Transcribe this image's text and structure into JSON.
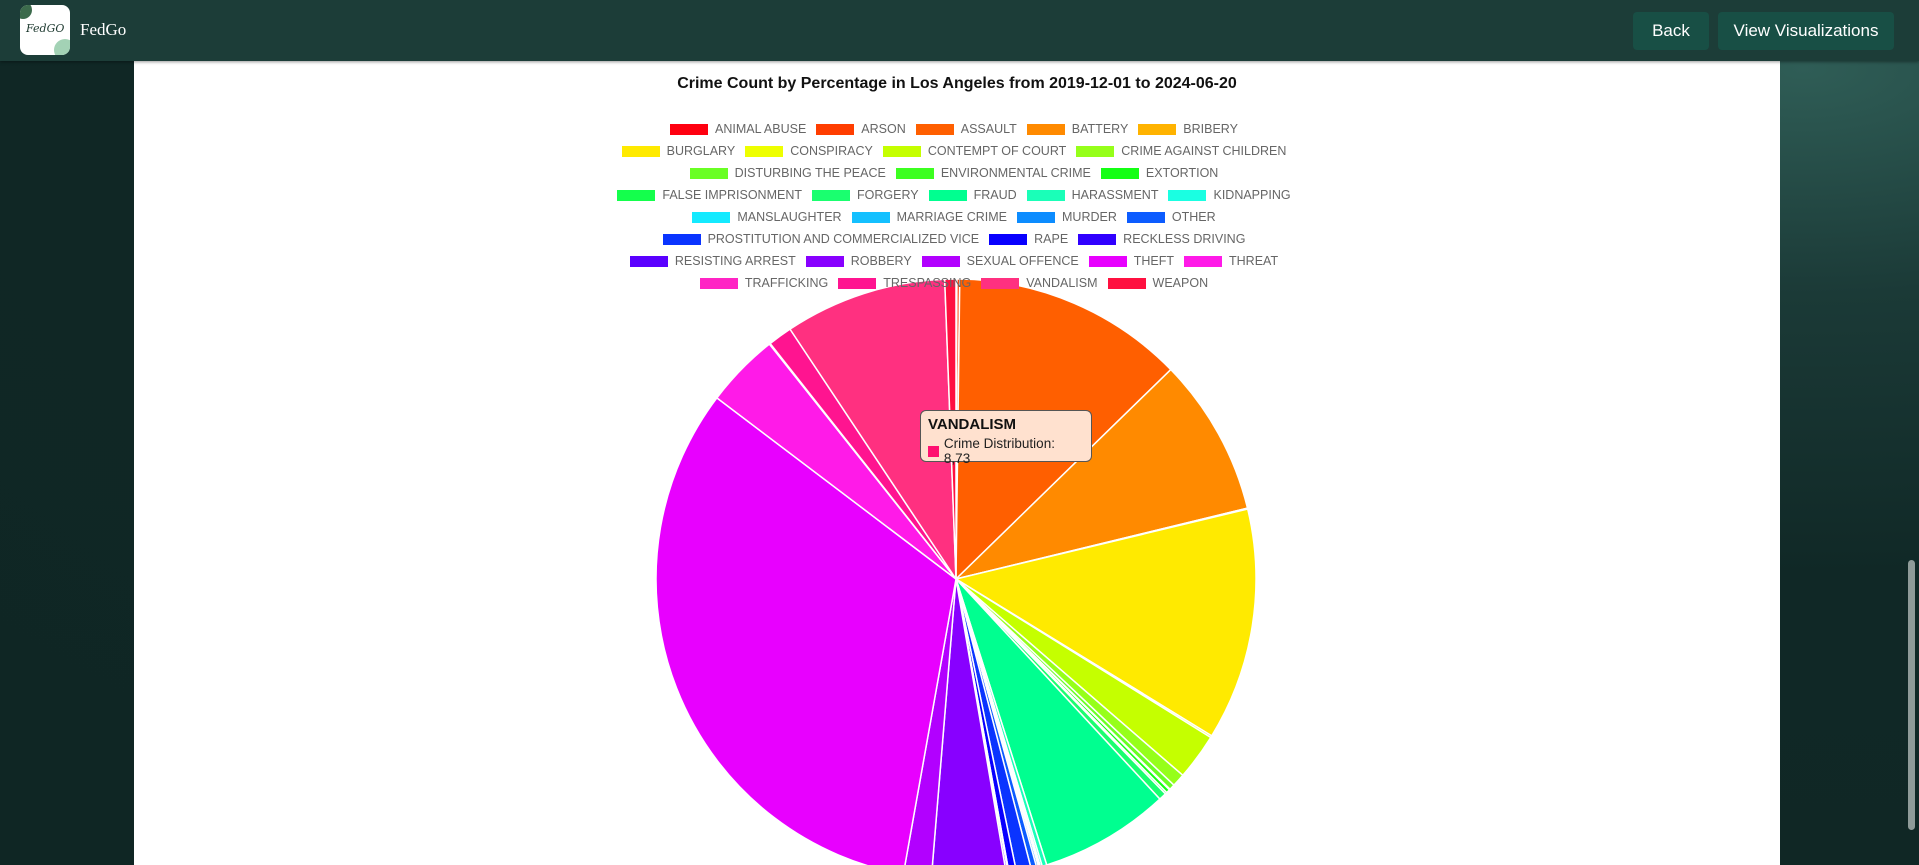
{
  "app": {
    "name": "FedGo",
    "logo_text": "FedGO"
  },
  "nav": {
    "back_label": "Back",
    "view_label": "View Visualizations"
  },
  "tooltip": {
    "title": "VANDALISM",
    "row_label": "Crime Distribution: 8,73",
    "color": "#ff1070"
  },
  "chart_data": {
    "type": "pie",
    "title": "Crime Count by Percentage in Los Angeles from 2019-12-01 to 2024-06-20",
    "legend_position": "top",
    "slices": [
      {
        "label": "ANIMAL ABUSE",
        "value": 0.05,
        "color": "#ff0010"
      },
      {
        "label": "ARSON",
        "value": 0.15,
        "color": "#ff3d00"
      },
      {
        "label": "ASSAULT",
        "value": 12.5,
        "color": "#ff5f00"
      },
      {
        "label": "BATTERY",
        "value": 8.5,
        "color": "#ff8a00"
      },
      {
        "label": "BRIBERY",
        "value": 0.05,
        "color": "#ffb300"
      },
      {
        "label": "BURGLARY",
        "value": 12.5,
        "color": "#ffea00"
      },
      {
        "label": "CONSPIRACY",
        "value": 0.1,
        "color": "#eeff00"
      },
      {
        "label": "CONTEMPT OF COURT",
        "value": 2.5,
        "color": "#c5ff00"
      },
      {
        "label": "CRIME AGAINST CHILDREN",
        "value": 0.7,
        "color": "#96ff1a"
      },
      {
        "label": "DISTURBING THE PEACE",
        "value": 0.3,
        "color": "#6aff24"
      },
      {
        "label": "ENVIRONMENTAL CRIME",
        "value": 0.05,
        "color": "#3cff20"
      },
      {
        "label": "EXTORTION",
        "value": 0.2,
        "color": "#14ff14"
      },
      {
        "label": "FALSE IMPRISONMENT",
        "value": 0.1,
        "color": "#14ff4c"
      },
      {
        "label": "FORGERY",
        "value": 0.4,
        "color": "#1aff6f"
      },
      {
        "label": "FRAUD",
        "value": 7.0,
        "color": "#00ff90"
      },
      {
        "label": "HARASSMENT",
        "value": 0.25,
        "color": "#1affb8"
      },
      {
        "label": "KIDNAPPING",
        "value": 0.1,
        "color": "#1affe2"
      },
      {
        "label": "MANSLAUGHTER",
        "value": 0.05,
        "color": "#14eaff"
      },
      {
        "label": "MARRIAGE CRIME",
        "value": 0.05,
        "color": "#14c0ff"
      },
      {
        "label": "MURDER",
        "value": 0.1,
        "color": "#0c8cff"
      },
      {
        "label": "OTHER",
        "value": 0.3,
        "color": "#0c5cff"
      },
      {
        "label": "PROSTITUTION AND COMMERCIALIZED VICE",
        "value": 0.8,
        "color": "#0a34ff"
      },
      {
        "label": "RAPE",
        "value": 0.4,
        "color": "#0800ff"
      },
      {
        "label": "RECKLESS DRIVING",
        "value": 0.05,
        "color": "#3000ff"
      },
      {
        "label": "RESISTING ARREST",
        "value": 0.1,
        "color": "#5a00ff"
      },
      {
        "label": "ROBBERY",
        "value": 4.0,
        "color": "#8800ff"
      },
      {
        "label": "SEXUAL OFFENCE",
        "value": 1.5,
        "color": "#b200ff"
      },
      {
        "label": "THEFT",
        "value": 32.5,
        "color": "#e800ff"
      },
      {
        "label": "THREAT",
        "value": 4.0,
        "color": "#ff1ae8"
      },
      {
        "label": "TRAFFICKING",
        "value": 0.05,
        "color": "#ff24c4"
      },
      {
        "label": "TRESPASSING",
        "value": 1.3,
        "color": "#ff1490"
      },
      {
        "label": "VANDALISM",
        "value": 8.73,
        "color": "#ff3080"
      },
      {
        "label": "WEAPON",
        "value": 0.6,
        "color": "#ff1040"
      }
    ]
  }
}
